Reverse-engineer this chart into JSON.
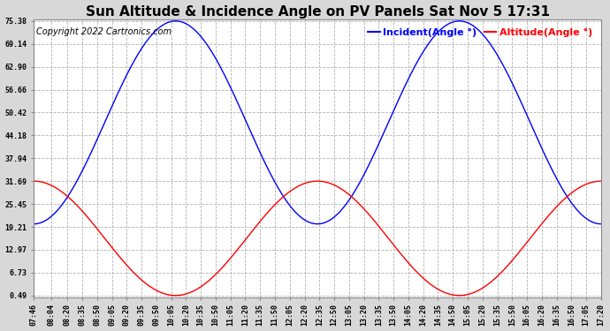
{
  "title": "Sun Altitude & Incidence Angle on PV Panels Sat Nov 5 17:31",
  "copyright": "Copyright 2022 Cartronics.com",
  "legend_incident": "Incident(Angle °)",
  "legend_altitude": "Altitude(Angle °)",
  "incident_color": "blue",
  "altitude_color": "red",
  "yticks": [
    0.49,
    6.73,
    12.97,
    19.21,
    25.45,
    31.69,
    37.94,
    44.18,
    50.42,
    56.66,
    62.9,
    69.14,
    75.38
  ],
  "ymin": 0.49,
  "ymax": 75.38,
  "time_start_min": 466,
  "time_end_min": 1040,
  "time_step_min": 15,
  "xtick_times": [
    466,
    484,
    500,
    515,
    530,
    545,
    560,
    575,
    590,
    605,
    620,
    635,
    650,
    665,
    680,
    695,
    710,
    725,
    740,
    755,
    770,
    785,
    800,
    815,
    830,
    845,
    860,
    875,
    890,
    905,
    920,
    935,
    950,
    965,
    980,
    995,
    1010,
    1025,
    1040
  ],
  "xtick_labels": [
    "07:46",
    "08:04",
    "08:20",
    "08:35",
    "08:50",
    "09:05",
    "09:20",
    "09:35",
    "09:50",
    "10:05",
    "10:20",
    "10:35",
    "10:50",
    "11:05",
    "11:20",
    "11:35",
    "11:50",
    "12:05",
    "12:20",
    "12:35",
    "12:50",
    "13:05",
    "13:20",
    "13:35",
    "13:50",
    "14:05",
    "14:20",
    "14:35",
    "14:50",
    "15:05",
    "15:20",
    "15:35",
    "15:50",
    "16:05",
    "16:20",
    "16:35",
    "16:50",
    "17:05",
    "17:20"
  ],
  "bg_color": "#d8d8d8",
  "plot_bg_color": "#ffffff",
  "grid_color": "#aaaaaa",
  "title_fontsize": 11,
  "copyright_fontsize": 7,
  "legend_fontsize": 8,
  "tick_fontsize": 6,
  "noon_min": 753,
  "alt_peak": 31.69,
  "alt_min": 0.49,
  "inc_peak": 75.38,
  "inc_min": 20.0
}
